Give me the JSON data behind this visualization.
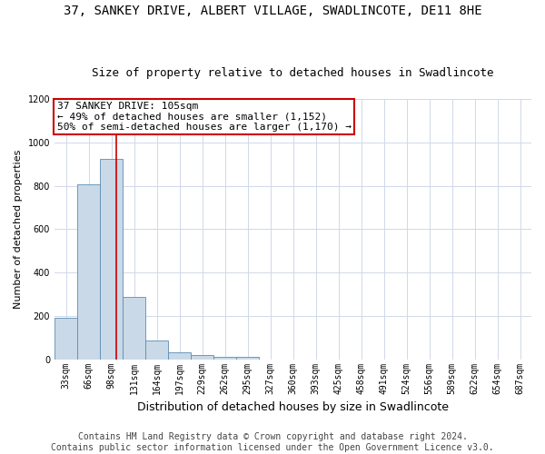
{
  "title": "37, SANKEY DRIVE, ALBERT VILLAGE, SWADLINCOTE, DE11 8HE",
  "subtitle": "Size of property relative to detached houses in Swadlincote",
  "xlabel": "Distribution of detached houses by size in Swadlincote",
  "ylabel": "Number of detached properties",
  "categories": [
    "33sqm",
    "66sqm",
    "98sqm",
    "131sqm",
    "164sqm",
    "197sqm",
    "229sqm",
    "262sqm",
    "295sqm",
    "327sqm",
    "360sqm",
    "393sqm",
    "425sqm",
    "458sqm",
    "491sqm",
    "524sqm",
    "556sqm",
    "589sqm",
    "622sqm",
    "654sqm",
    "687sqm"
  ],
  "values": [
    193,
    808,
    924,
    286,
    88,
    32,
    18,
    10,
    10,
    0,
    0,
    0,
    0,
    0,
    0,
    0,
    0,
    0,
    0,
    0,
    0
  ],
  "bar_color": "#c9d9e8",
  "bar_edge_color": "#5a8db5",
  "vline_color": "#cc0000",
  "annotation_line1": "37 SANKEY DRIVE: 105sqm",
  "annotation_line2": "← 49% of detached houses are smaller (1,152)",
  "annotation_line3": "50% of semi-detached houses are larger (1,170) →",
  "annotation_box_color": "#ffffff",
  "annotation_box_edge_color": "#cc0000",
  "ylim": [
    0,
    1200
  ],
  "yticks": [
    0,
    200,
    400,
    600,
    800,
    1000,
    1200
  ],
  "footnote": "Contains HM Land Registry data © Crown copyright and database right 2024.\nContains public sector information licensed under the Open Government Licence v3.0.",
  "background_color": "#ffffff",
  "grid_color": "#d0d8e8",
  "title_fontsize": 10,
  "subtitle_fontsize": 9,
  "xlabel_fontsize": 9,
  "ylabel_fontsize": 8,
  "tick_fontsize": 7,
  "annotation_fontsize": 8,
  "footnote_fontsize": 7
}
